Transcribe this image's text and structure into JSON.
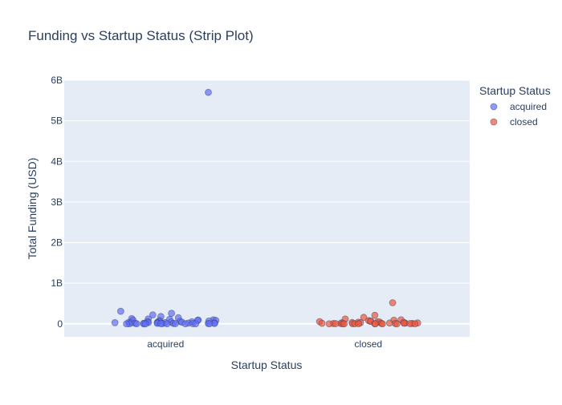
{
  "chart_data": {
    "type": "scatter",
    "title": "Funding vs Startup Status (Strip Plot)",
    "xlabel": "Startup Status",
    "ylabel": "Total Funding (USD)",
    "categories": [
      "acquired",
      "closed"
    ],
    "ylim": [
      -320000000,
      6000000000
    ],
    "y_ticks": [
      {
        "value": 0,
        "label": "0"
      },
      {
        "value": 1000000000,
        "label": "1B"
      },
      {
        "value": 2000000000,
        "label": "2B"
      },
      {
        "value": 3000000000,
        "label": "3B"
      },
      {
        "value": 4000000000,
        "label": "4B"
      },
      {
        "value": 5000000000,
        "label": "5B"
      },
      {
        "value": 6000000000,
        "label": "6B"
      }
    ],
    "grid": true,
    "legend": {
      "title": "Startup Status",
      "position": "top-right"
    },
    "series": [
      {
        "name": "acquired",
        "category": "acquired",
        "color": "#636efa",
        "values": [
          5700000000,
          310000000,
          260000000,
          220000000,
          180000000,
          150000000,
          130000000,
          120000000,
          110000000,
          100000000,
          95000000,
          90000000,
          85000000,
          80000000,
          75000000,
          70000000,
          65000000,
          60000000,
          55000000,
          50000000,
          45000000,
          40000000,
          38000000,
          35000000,
          32000000,
          30000000,
          28000000,
          25000000,
          22000000,
          20000000,
          18000000,
          16000000,
          14000000,
          12000000,
          10000000,
          9000000,
          8000000,
          7000000,
          6000000,
          5000000,
          4000000,
          3000000,
          2500000,
          2000000,
          1500000,
          1000000,
          800000,
          500000,
          300000,
          100000
        ]
      },
      {
        "name": "closed",
        "category": "closed",
        "color": "#ef553b",
        "values": [
          520000000,
          210000000,
          160000000,
          120000000,
          100000000,
          90000000,
          80000000,
          70000000,
          60000000,
          55000000,
          50000000,
          45000000,
          40000000,
          36000000,
          32000000,
          28000000,
          25000000,
          22000000,
          20000000,
          18000000,
          16000000,
          14000000,
          12000000,
          10000000,
          9000000,
          8000000,
          7000000,
          6000000,
          5000000,
          4000000,
          3000000,
          2500000,
          2000000,
          1500000,
          1000000,
          800000,
          500000,
          300000,
          200000,
          100000
        ]
      }
    ]
  }
}
